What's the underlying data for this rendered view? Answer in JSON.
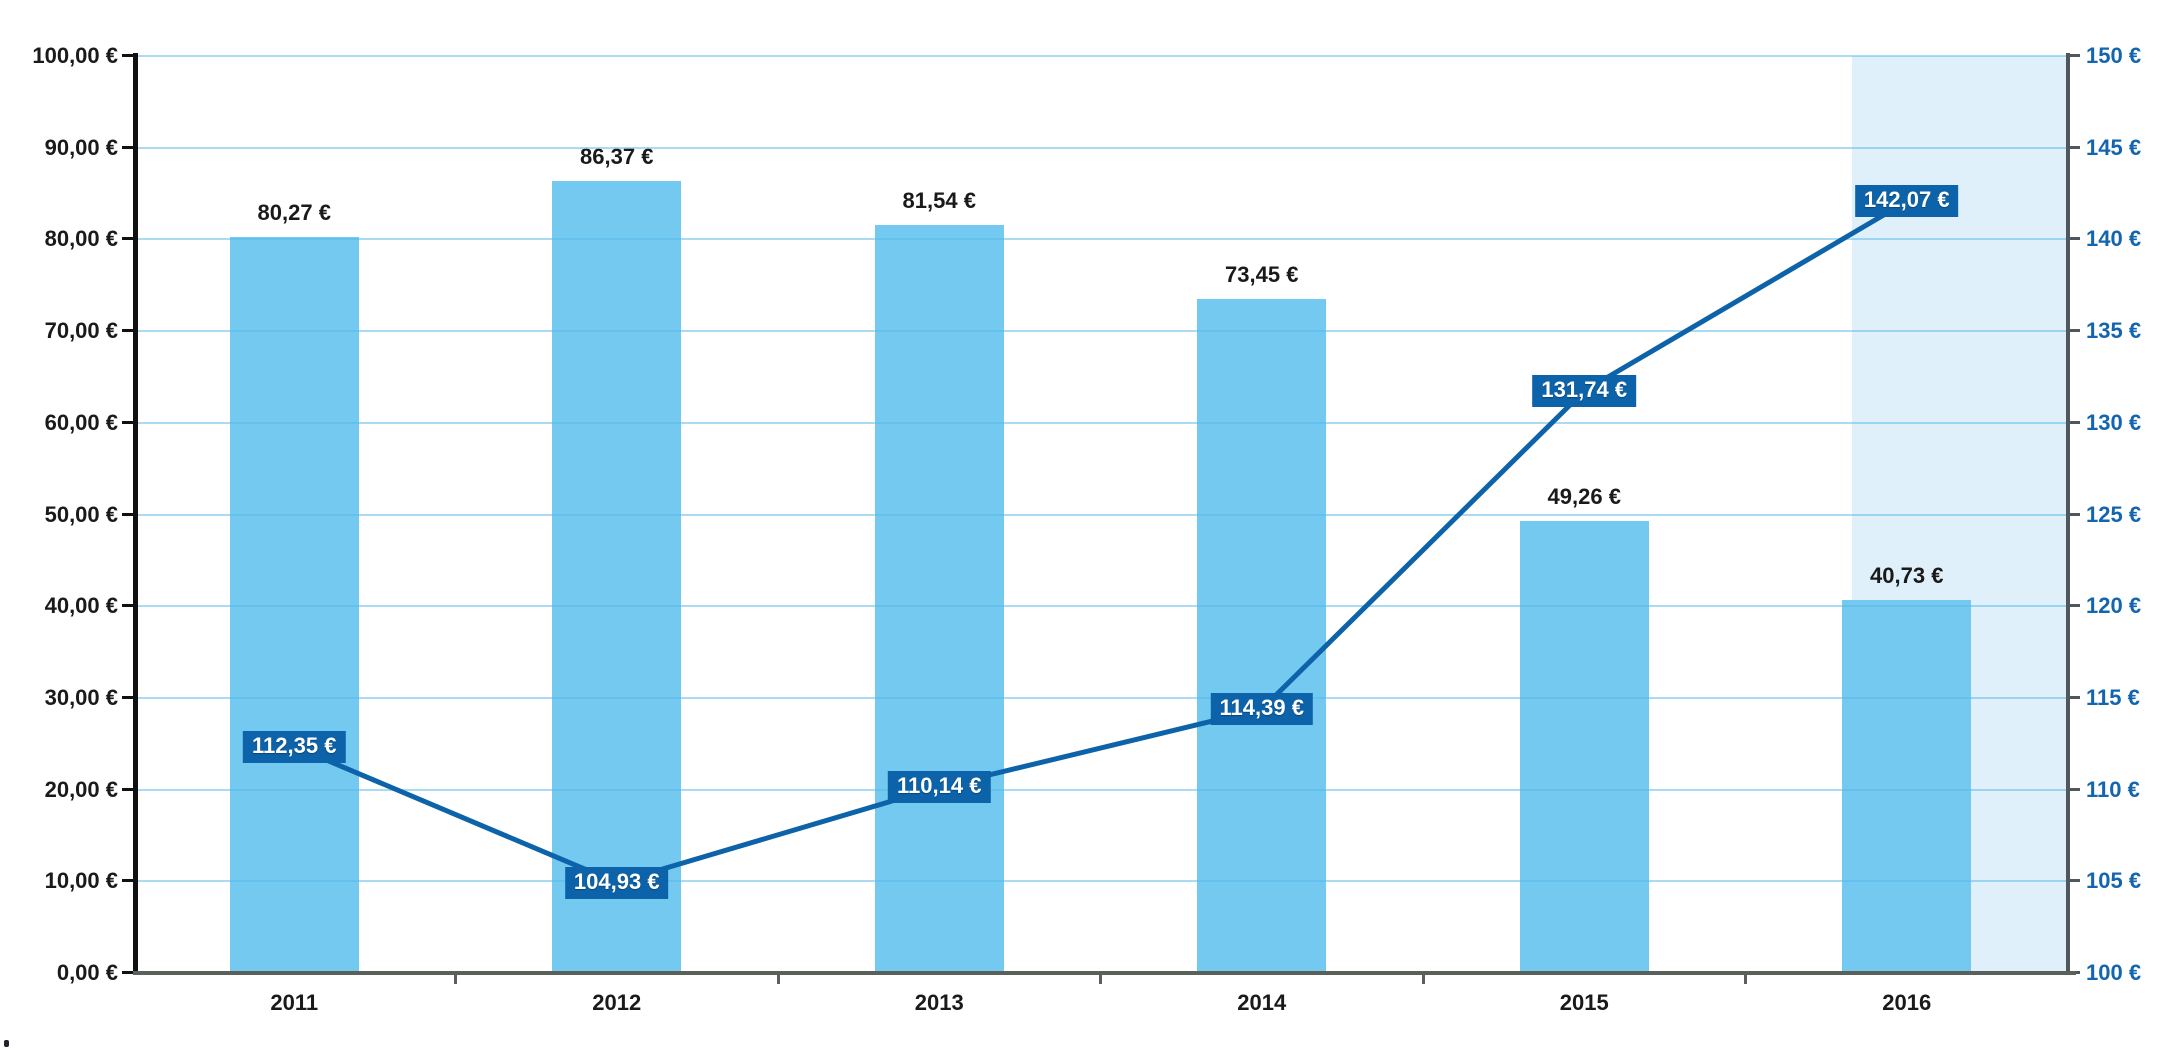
{
  "chart_data": {
    "type": "combo",
    "title": "",
    "categories": [
      "2011",
      "2012",
      "2013",
      "2014",
      "2015",
      "2016"
    ],
    "series": [
      {
        "name": "bar-series",
        "type": "bar",
        "axis": "left",
        "color": "#74C9F0",
        "values": [
          80.27,
          86.37,
          81.54,
          73.45,
          49.26,
          40.73
        ],
        "labels": [
          "80,27 €",
          "86,37 €",
          "81,54 €",
          "73,45 €",
          "49,26 €",
          "40,73 €"
        ],
        "label_color": "#1A1A1A"
      },
      {
        "name": "line-series",
        "type": "line",
        "axis": "right",
        "color": "#0D63A9",
        "values": [
          112.35,
          104.93,
          110.14,
          114.39,
          131.74,
          142.07
        ],
        "labels": [
          "112,35 €",
          "104,93 €",
          "110,14 €",
          "114,39 €",
          "131,74 €",
          "142,07 €"
        ],
        "label_bg": "#0D63A9",
        "label_text_color": "#FFFFFF"
      }
    ],
    "left_axis": {
      "min": 0,
      "max": 100,
      "step": 10,
      "labels": [
        "100,00 €",
        "90,00 €",
        "80,00 €",
        "70,00 €",
        "60,00 €",
        "50,00 €",
        "40,00 €",
        "30,00 €",
        "20,00 €",
        "10,00 €",
        "0,00 €"
      ],
      "text_color": "#1A1A1A",
      "line_color": "#111111"
    },
    "right_axis": {
      "min": 100,
      "max": 150,
      "step": 5,
      "labels": [
        "150 €",
        "145 €",
        "140 €",
        "135 €",
        "130 €",
        "125 €",
        "120 €",
        "115 €",
        "110 €",
        "105 €",
        "100 €"
      ],
      "text_color": "#1365AF",
      "line_color": "#4F575B"
    },
    "x_axis": {
      "labels": [
        "2011",
        "2012",
        "2013",
        "2014",
        "2015",
        "2016"
      ],
      "text_color": "#1A1A1A",
      "line_color": "#59615A"
    },
    "grid": {
      "show": true,
      "color_rgba": "rgba(85,184,232,0.50)"
    },
    "highlight": {
      "category": "2016",
      "color": "#DFF0FB"
    },
    "legend": {
      "show": false
    }
  }
}
